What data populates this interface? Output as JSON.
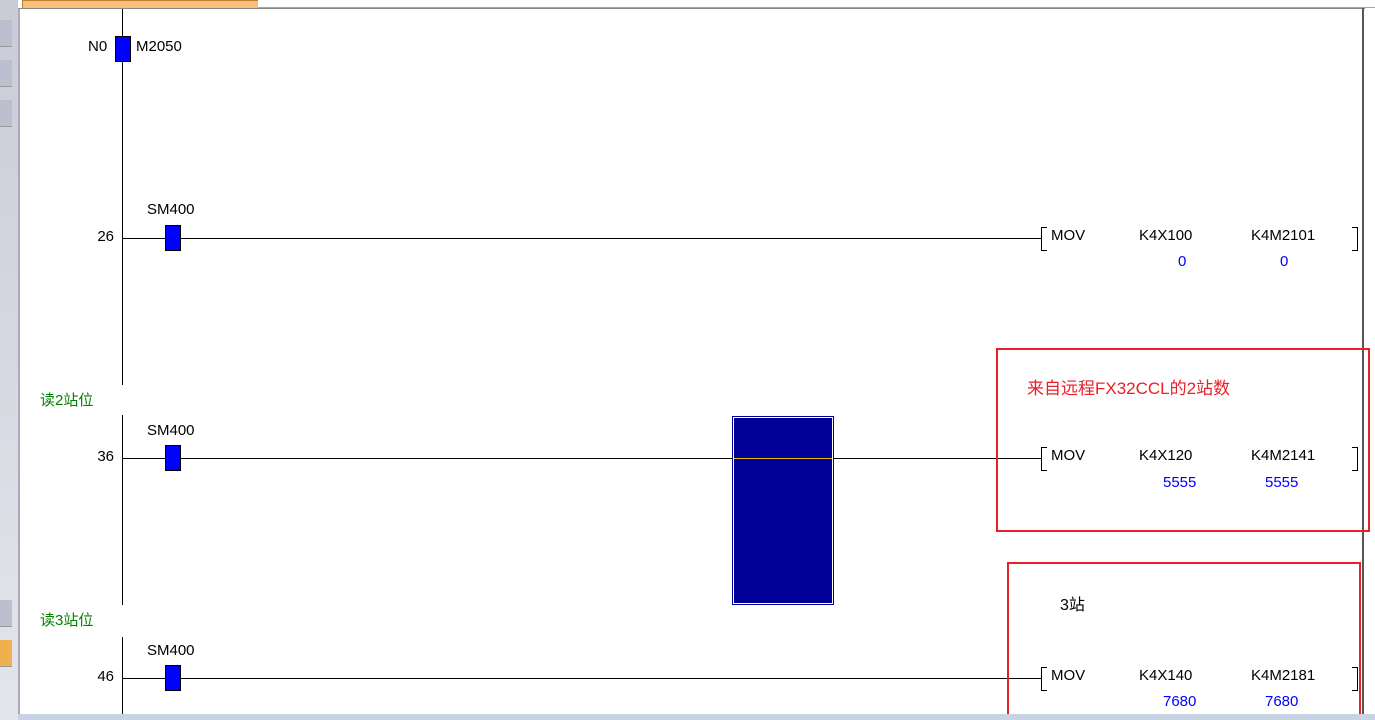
{
  "colors": {
    "contact": "#0000ff",
    "comment": "#008000",
    "value": "#0000ff",
    "highlight": "#e8202a",
    "cursor": "#000099"
  },
  "rungs": [
    {
      "step": "N0",
      "device": "M2050"
    },
    {
      "step": "26",
      "contact": "SM400",
      "instr": "MOV",
      "src": "K4X100",
      "dst": "K4M2101",
      "src_val": "0",
      "dst_val": "0"
    },
    {
      "comment": "读2站位",
      "step": "36",
      "contact": "SM400",
      "instr": "MOV",
      "src": "K4X120",
      "dst": "K4M2141",
      "src_val": "5555",
      "dst_val": "5555"
    },
    {
      "comment": "读3站位",
      "step": "46",
      "contact": "SM400",
      "instr": "MOV",
      "src": "K4X140",
      "dst": "K4M2181",
      "src_val": "7680",
      "dst_val": "7680"
    }
  ],
  "annotations": {
    "box1": "来自远程FX32CCL的2站数",
    "box2": "3站"
  }
}
